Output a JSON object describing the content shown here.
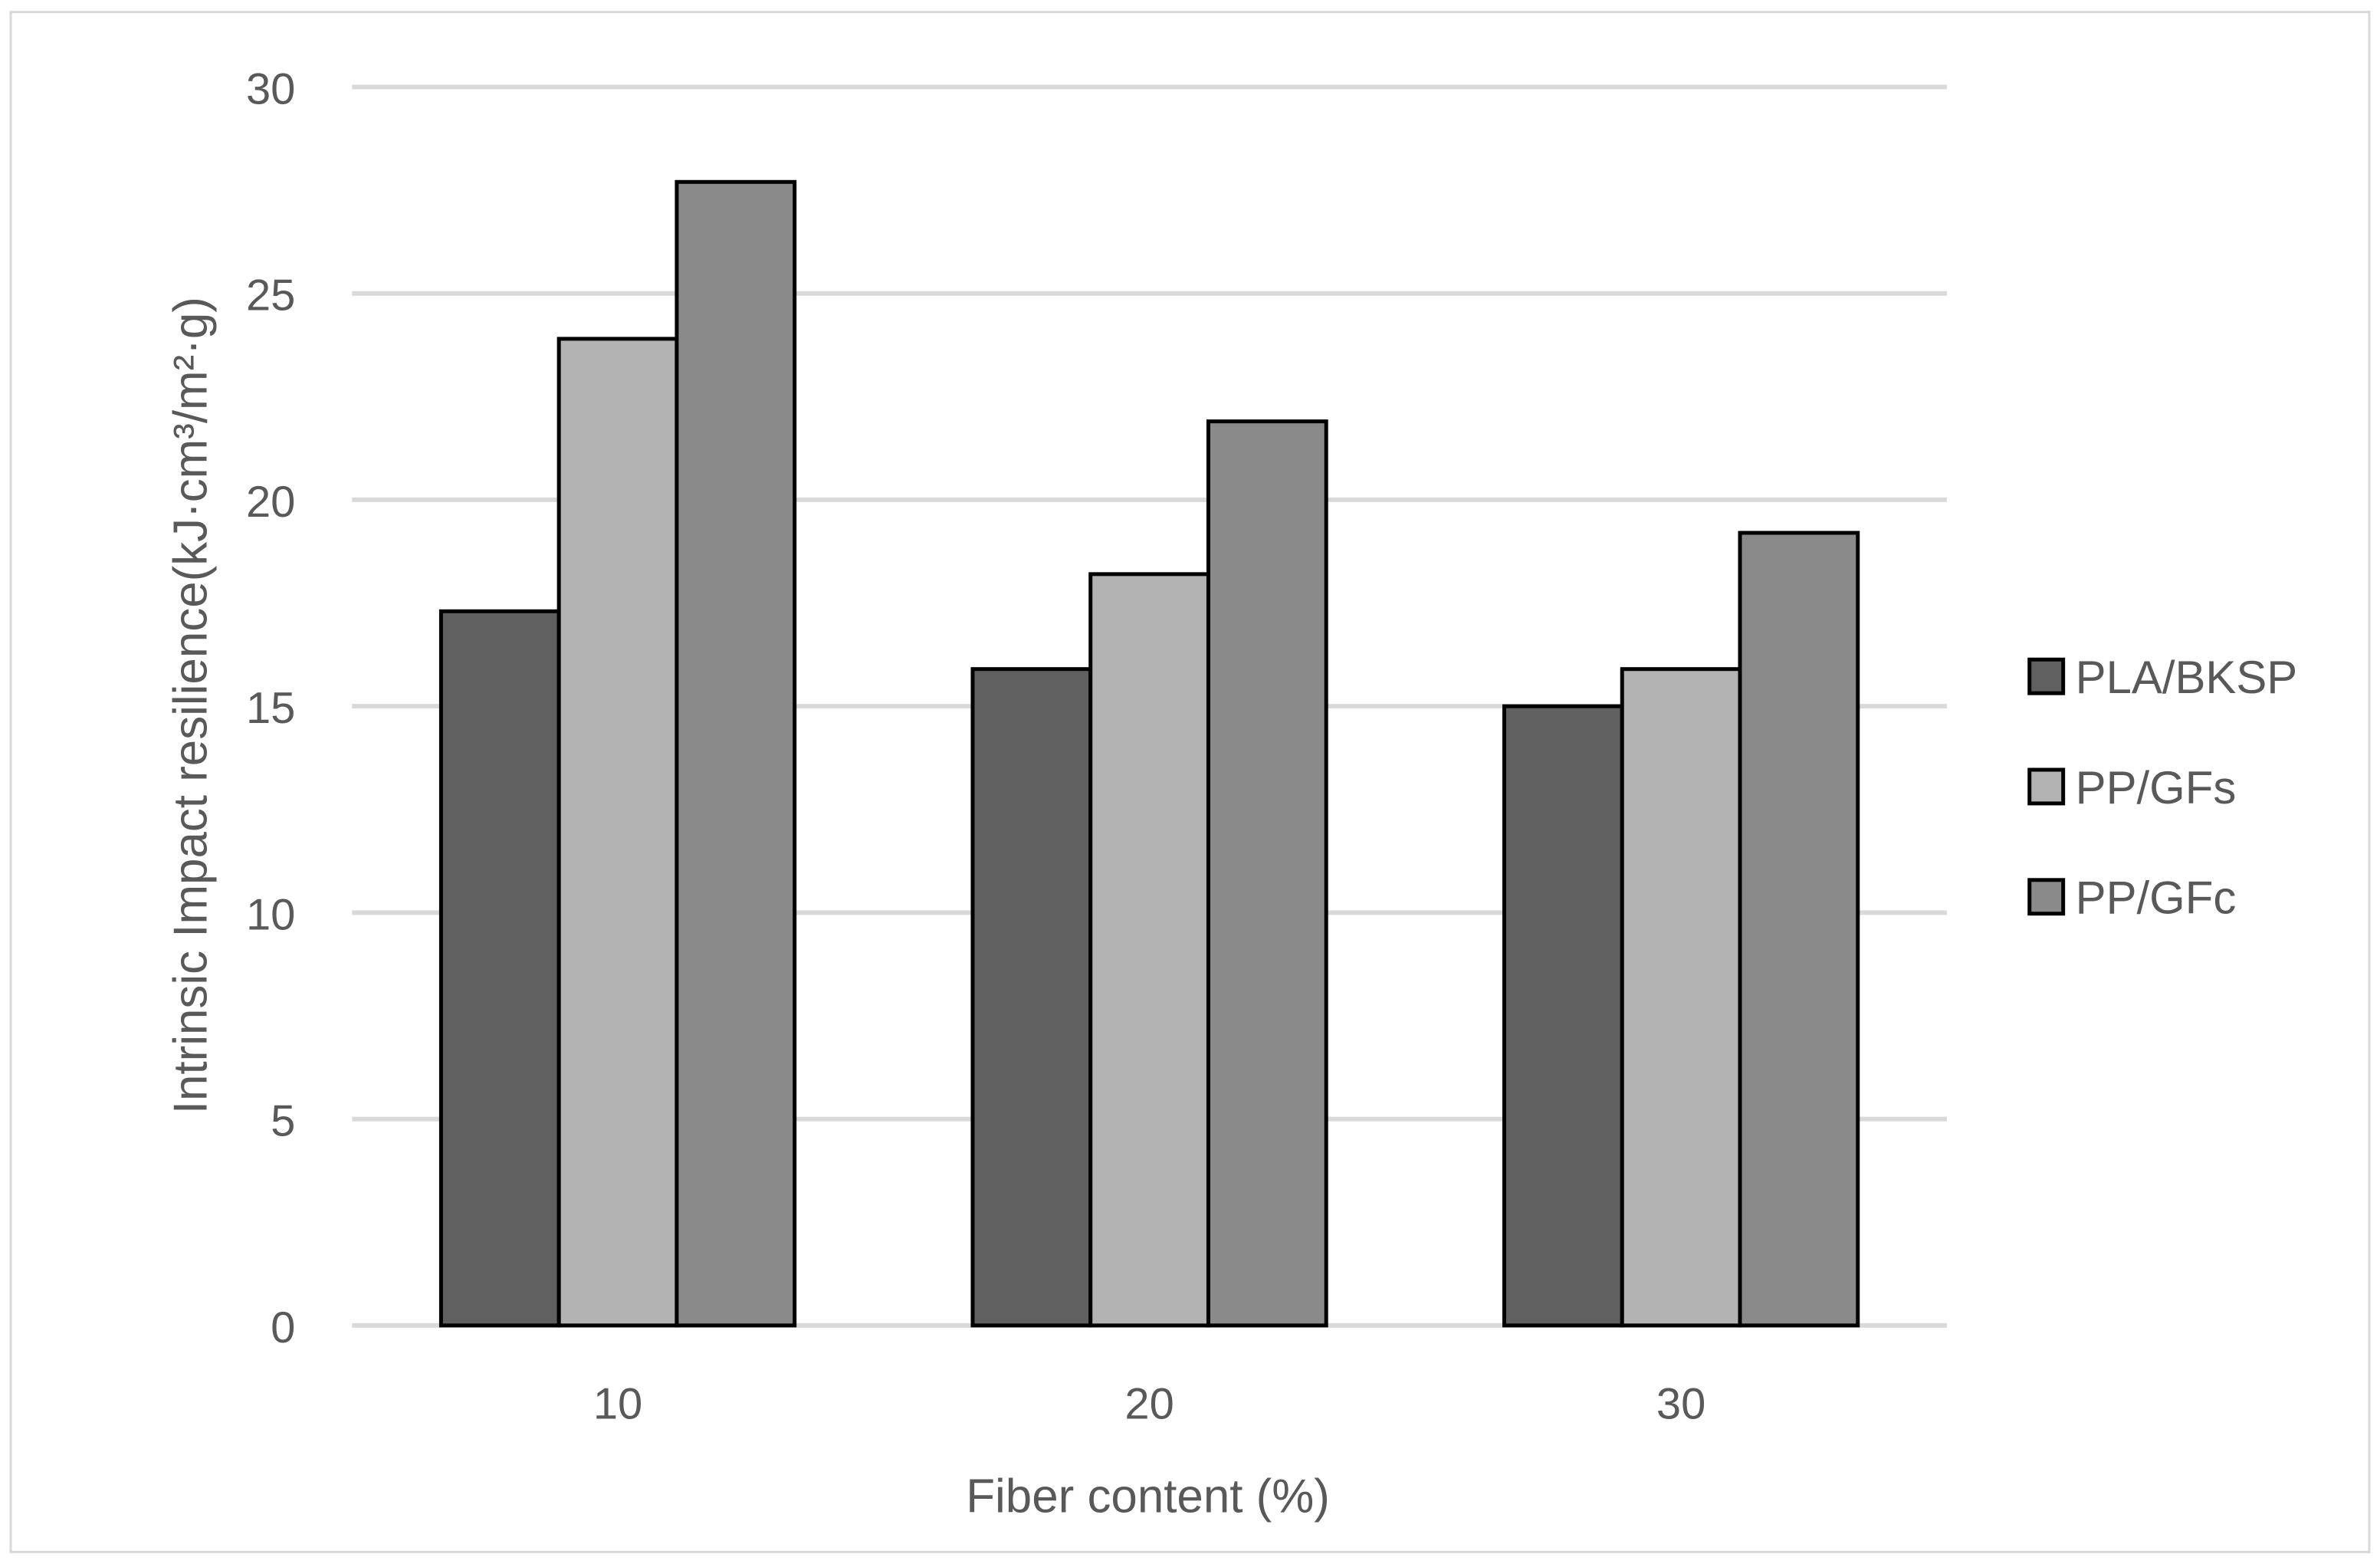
{
  "chart_data": {
    "type": "bar",
    "title": "",
    "xlabel": "Fiber content (%)",
    "ylabel": "Intrinsic Impact resilience(kJ·cm³/m²·g)",
    "categories": [
      "10",
      "20",
      "30"
    ],
    "ylim": [
      0,
      30
    ],
    "yticks": [
      0,
      5,
      10,
      15,
      20,
      25,
      30
    ],
    "grid": true,
    "legend_position": "right",
    "series": [
      {
        "name": "PLA/BKSP",
        "color": "#606060",
        "values": [
          17.3,
          15.9,
          15.0
        ]
      },
      {
        "name": "PP/GFs",
        "color": "#b3b3b3",
        "values": [
          23.9,
          18.2,
          15.9
        ]
      },
      {
        "name": "PP/GFc",
        "color": "#8a8a8a",
        "values": [
          27.7,
          21.9,
          19.2
        ]
      }
    ]
  }
}
